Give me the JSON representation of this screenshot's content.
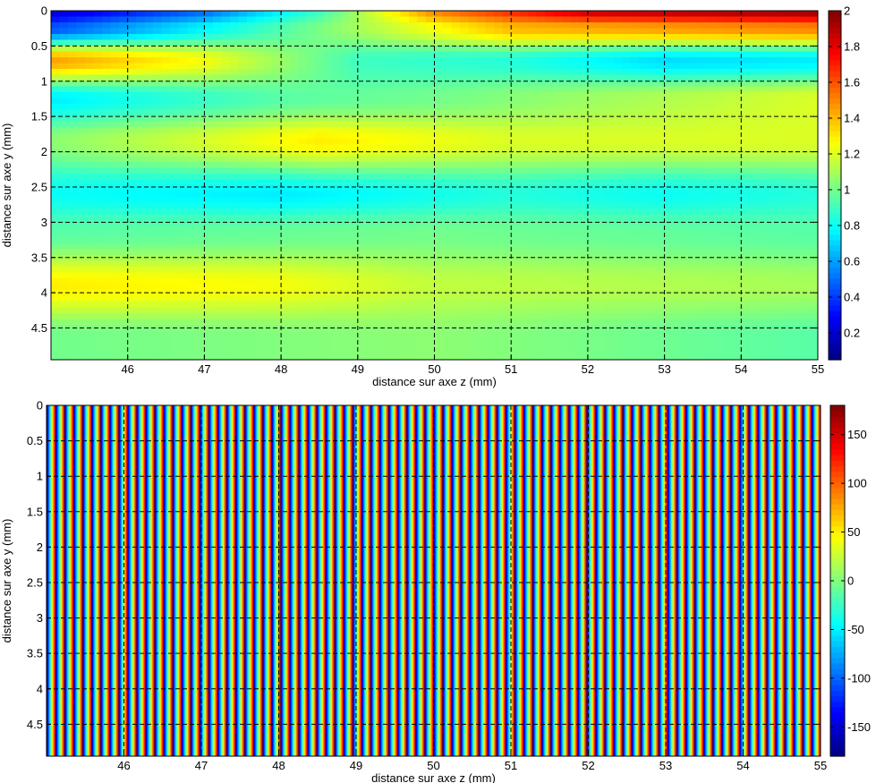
{
  "chart_data": [
    {
      "type": "heatmap",
      "title": "",
      "xlabel": "distance sur axe z (mm)",
      "ylabel": "distance sur axe y (mm)",
      "xlim": [
        45,
        55
      ],
      "ylim": [
        0,
        4.95
      ],
      "y_reversed": true,
      "x_ticks": [
        46,
        47,
        48,
        49,
        50,
        51,
        52,
        53,
        54,
        55
      ],
      "y_ticks": [
        0,
        0.5,
        1,
        1.5,
        2,
        2.5,
        3,
        3.5,
        4,
        4.5
      ],
      "grid": true,
      "colormap": "jet",
      "colorbar": {
        "range": [
          0.05,
          2
        ],
        "ticks": [
          0.2,
          0.4,
          0.6,
          0.8,
          1,
          1.2,
          1.4,
          1.6,
          1.8,
          2
        ]
      },
      "value_profile_by_y": [
        {
          "y": 0.0,
          "values_at_z": [
            [
              45,
              0.2
            ],
            [
              47,
              0.5
            ],
            [
              48.5,
              0.9
            ],
            [
              50,
              1.5
            ],
            [
              52,
              1.85
            ],
            [
              55,
              1.95
            ]
          ]
        },
        {
          "y": 0.25,
          "values_at_z": [
            [
              45,
              0.45
            ],
            [
              47.5,
              0.85
            ],
            [
              49,
              1.1
            ],
            [
              51,
              1.4
            ],
            [
              55,
              1.5
            ]
          ]
        },
        {
          "y": 0.7,
          "values_at_z": [
            [
              45,
              1.45
            ],
            [
              47,
              1.25
            ],
            [
              49,
              0.9
            ],
            [
              51,
              0.85
            ],
            [
              53,
              0.72
            ],
            [
              55,
              0.75
            ]
          ]
        },
        {
          "y": 1.25,
          "values_at_z": [
            [
              45,
              0.75
            ],
            [
              48,
              0.95
            ],
            [
              50,
              1.0
            ],
            [
              55,
              1.2
            ]
          ]
        },
        {
          "y": 1.85,
          "values_at_z": [
            [
              45,
              1.05
            ],
            [
              48.5,
              1.3
            ],
            [
              51,
              1.2
            ],
            [
              55,
              1.2
            ]
          ]
        },
        {
          "y": 2.6,
          "values_at_z": [
            [
              45,
              0.8
            ],
            [
              48,
              0.75
            ],
            [
              51,
              0.85
            ],
            [
              53,
              0.8
            ],
            [
              55,
              0.85
            ]
          ]
        },
        {
          "y": 3.15,
          "values_at_z": [
            [
              45,
              0.95
            ],
            [
              50,
              1.0
            ],
            [
              55,
              0.95
            ]
          ]
        },
        {
          "y": 3.9,
          "values_at_z": [
            [
              45,
              1.3
            ],
            [
              48,
              1.25
            ],
            [
              50,
              1.15
            ],
            [
              55,
              1.1
            ]
          ]
        },
        {
          "y": 4.6,
          "values_at_z": [
            [
              45,
              1.0
            ],
            [
              50,
              1.05
            ],
            [
              55,
              0.95
            ]
          ]
        }
      ]
    },
    {
      "type": "heatmap",
      "title": "",
      "xlabel": "distance sur axe z (mm)",
      "ylabel": "distance sur axe y (mm)",
      "xlim": [
        45,
        55
      ],
      "ylim": [
        0,
        4.95
      ],
      "y_reversed": true,
      "x_ticks": [
        46,
        47,
        48,
        49,
        50,
        51,
        52,
        53,
        54,
        55
      ],
      "y_ticks": [
        0,
        0.5,
        1,
        1.5,
        2,
        2.5,
        3,
        3.5,
        4,
        4.5
      ],
      "grid": true,
      "colormap": "jet",
      "colorbar": {
        "range": [
          -180,
          180
        ],
        "ticks": [
          -150,
          -100,
          -50,
          0,
          50,
          100,
          150
        ]
      },
      "phase_fringes": {
        "count": 86,
        "orientation": "vertical",
        "wrap_degrees": 360
      }
    }
  ]
}
